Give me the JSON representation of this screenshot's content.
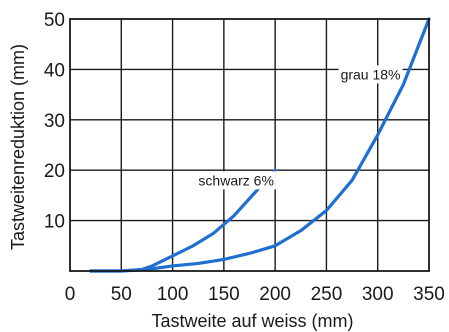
{
  "chart_data": {
    "type": "line",
    "xlabel": "Tastweite auf weiss (mm)",
    "ylabel": "Tastweitenreduktion (mm)",
    "xlim": [
      0,
      350
    ],
    "ylim": [
      0,
      50
    ],
    "xticks": [
      0,
      50,
      100,
      150,
      200,
      250,
      300,
      350
    ],
    "yticks": [
      10,
      20,
      30,
      40,
      50
    ],
    "grid": true,
    "series": [
      {
        "name": "schwarz 6%",
        "color": "#1f6fd1",
        "x": [
          20,
          50,
          70,
          80,
          90,
          100,
          120,
          140,
          160,
          180,
          200
        ],
        "y": [
          0,
          0,
          0.3,
          1,
          2,
          3,
          5,
          7.5,
          11,
          15.5,
          20
        ]
      },
      {
        "name": "grau 18%",
        "color": "#1f6fd1",
        "x": [
          20,
          50,
          75,
          100,
          125,
          150,
          175,
          200,
          225,
          250,
          275,
          300,
          325,
          350
        ],
        "y": [
          0,
          0,
          0.3,
          1,
          1.5,
          2.3,
          3.5,
          5,
          8,
          12,
          18,
          27,
          37,
          50
        ]
      }
    ],
    "annotations": [
      {
        "text": "schwarz 6%",
        "x": 162,
        "y": 17
      },
      {
        "text": "grau 18%",
        "x": 293,
        "y": 38
      }
    ]
  }
}
